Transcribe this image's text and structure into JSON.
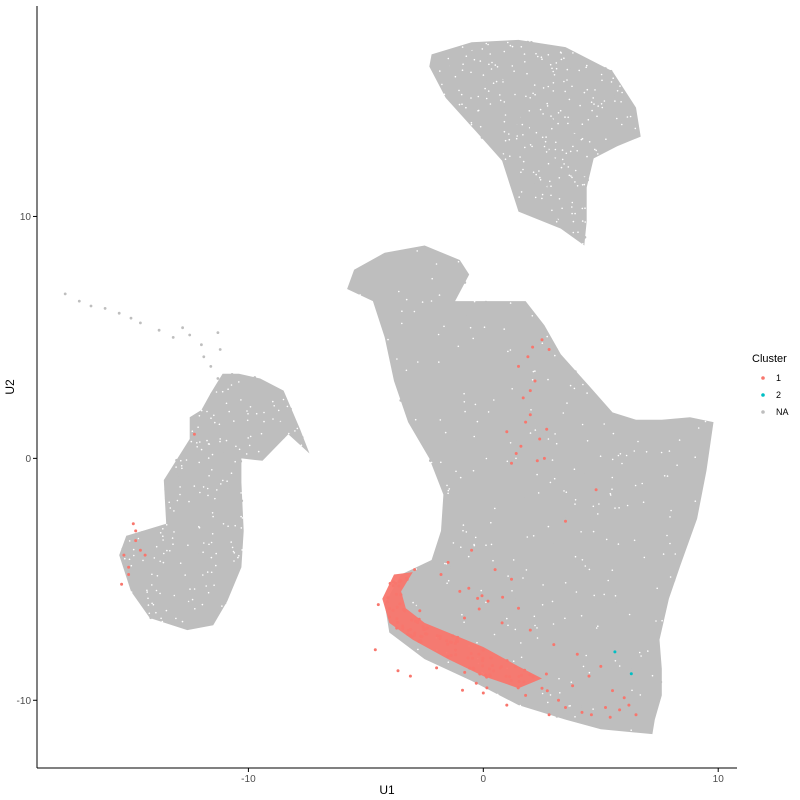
{
  "chart_data": {
    "type": "scatter",
    "xlabel": "U1",
    "ylabel": "U2",
    "xlim": [
      -19,
      10.8
    ],
    "ylim": [
      -12.8,
      18.7
    ],
    "x_ticks": [
      -10,
      0,
      10
    ],
    "y_ticks": [
      -10,
      0,
      10
    ],
    "grid": false,
    "legend": {
      "title": "Cluster",
      "position": "right",
      "entries": [
        {
          "label": "1",
          "color": "#F8766D"
        },
        {
          "label": "2",
          "color": "#00BFC4"
        },
        {
          "label": "NA",
          "color": "#BEBEBE"
        }
      ]
    },
    "regions_NA": [
      {
        "name": "top-island",
        "polygon": [
          [
            -2.2,
            16.7
          ],
          [
            -0.5,
            17.2
          ],
          [
            1.5,
            17.3
          ],
          [
            3.5,
            17.0
          ],
          [
            5.5,
            16.0
          ],
          [
            6.5,
            14.5
          ],
          [
            6.7,
            13.3
          ],
          [
            5.7,
            12.9
          ],
          [
            4.7,
            12.4
          ],
          [
            4.4,
            11.2
          ],
          [
            4.4,
            9.8
          ],
          [
            4.3,
            8.8
          ],
          [
            3.3,
            9.5
          ],
          [
            1.5,
            10.2
          ],
          [
            0.8,
            12.3
          ],
          [
            -0.3,
            13.5
          ],
          [
            -1.6,
            14.9
          ],
          [
            -2.3,
            16.2
          ]
        ]
      },
      {
        "name": "main-body",
        "polygon": [
          [
            -5.5,
            7.8
          ],
          [
            -4.2,
            8.5
          ],
          [
            -2.5,
            8.8
          ],
          [
            -1.0,
            8.2
          ],
          [
            -0.6,
            7.6
          ],
          [
            -1.2,
            6.5
          ],
          [
            0.2,
            6.5
          ],
          [
            1.8,
            6.5
          ],
          [
            2.6,
            5.5
          ],
          [
            3.3,
            4.3
          ],
          [
            4.5,
            3.0
          ],
          [
            5.5,
            1.9
          ],
          [
            6.5,
            1.6
          ],
          [
            7.6,
            1.6
          ],
          [
            8.8,
            1.7
          ],
          [
            9.8,
            1.5
          ],
          [
            9.5,
            -0.5
          ],
          [
            9.1,
            -2.5
          ],
          [
            8.4,
            -4.4
          ],
          [
            7.9,
            -5.8
          ],
          [
            7.5,
            -7.5
          ],
          [
            7.6,
            -8.7
          ],
          [
            7.6,
            -9.8
          ],
          [
            7.3,
            -10.8
          ],
          [
            7.2,
            -11.4
          ],
          [
            5.0,
            -11.2
          ],
          [
            3.5,
            -10.8
          ],
          [
            1.5,
            -10.2
          ],
          [
            -0.5,
            -9.2
          ],
          [
            -2.5,
            -8.3
          ],
          [
            -4.0,
            -7.2
          ],
          [
            -4.2,
            -6.0
          ],
          [
            -3.5,
            -4.8
          ],
          [
            -2.2,
            -4.2
          ],
          [
            -1.8,
            -3.0
          ],
          [
            -1.7,
            -1.5
          ],
          [
            -2.3,
            0.0
          ],
          [
            -3.2,
            1.5
          ],
          [
            -3.8,
            3.2
          ],
          [
            -4.2,
            5.0
          ],
          [
            -4.7,
            6.5
          ],
          [
            -5.8,
            7.0
          ]
        ]
      },
      {
        "name": "left-island",
        "polygon": [
          [
            -13.5,
            -2.7
          ],
          [
            -13.6,
            -0.9
          ],
          [
            -12.5,
            0.8
          ],
          [
            -12.5,
            1.7
          ],
          [
            -12.0,
            2.0
          ],
          [
            -11.6,
            2.7
          ],
          [
            -11.1,
            3.5
          ],
          [
            -10.4,
            3.5
          ],
          [
            -9.5,
            3.3
          ],
          [
            -8.5,
            2.8
          ],
          [
            -7.8,
            1.2
          ],
          [
            -7.4,
            0.2
          ],
          [
            -8.3,
            1.0
          ],
          [
            -9.4,
            -0.1
          ],
          [
            -10.3,
            0.0
          ],
          [
            -10.3,
            -1.0
          ],
          [
            -10.2,
            -3.0
          ],
          [
            -10.3,
            -4.5
          ],
          [
            -10.9,
            -5.9
          ],
          [
            -11.5,
            -6.9
          ],
          [
            -12.6,
            -7.1
          ],
          [
            -14.2,
            -6.6
          ],
          [
            -15.0,
            -5.5
          ],
          [
            -15.5,
            -4.0
          ],
          [
            -15.2,
            -3.2
          ]
        ]
      }
    ],
    "strands_NA": [
      {
        "name": "upper-left-strand",
        "points": [
          [
            -17.8,
            6.8
          ],
          [
            -17.2,
            6.5
          ],
          [
            -16.7,
            6.3
          ],
          [
            -16.1,
            6.2
          ],
          [
            -15.5,
            6.0
          ],
          [
            -15.0,
            5.8
          ],
          [
            -14.6,
            5.6
          ],
          [
            -13.8,
            5.3
          ],
          [
            -13.2,
            5.0
          ]
        ]
      },
      {
        "name": "mid-strand",
        "points": [
          [
            -12.8,
            5.4
          ],
          [
            -12.5,
            5.1
          ],
          [
            -12.0,
            4.7
          ],
          [
            -11.9,
            4.2
          ],
          [
            -11.6,
            3.8
          ],
          [
            -11.3,
            3.3
          ],
          [
            -11.2,
            4.5
          ],
          [
            -11.3,
            5.2
          ]
        ]
      }
    ],
    "series": [
      {
        "name": "1",
        "color": "#F8766D",
        "dense_band": {
          "polygon": [
            [
              -4.3,
              -5.8
            ],
            [
              -3.8,
              -4.8
            ],
            [
              -3.0,
              -4.7
            ],
            [
              -3.5,
              -5.5
            ],
            [
              -3.3,
              -6.2
            ],
            [
              -2.5,
              -6.8
            ],
            [
              -1.5,
              -7.2
            ],
            [
              0.0,
              -7.8
            ],
            [
              1.5,
              -8.6
            ],
            [
              2.5,
              -9.1
            ],
            [
              1.5,
              -9.5
            ],
            [
              0.0,
              -9.0
            ],
            [
              -1.5,
              -8.3
            ],
            [
              -3.0,
              -7.5
            ],
            [
              -4.0,
              -6.8
            ]
          ]
        },
        "x": [
          -12.3,
          -14.9,
          -14.8,
          -14.6,
          -15.3,
          -15.1,
          -14.8,
          -15.4,
          -14.4,
          -15.1,
          1.5,
          1.9,
          2.1,
          2.5,
          2.8,
          1.7,
          1.8,
          2.0,
          2.2,
          1.6,
          2.4,
          1.4,
          2.3,
          2.6,
          1.2,
          1.0,
          2.0,
          2.7,
          4.8,
          3.5,
          -1.5,
          -0.5,
          0.5,
          1.2,
          -1.0,
          0.2,
          1.5,
          -0.8,
          0.8,
          2.0,
          -1.8,
          3.0,
          4.0,
          5.0,
          4.5,
          3.8,
          5.5,
          6.0,
          5.2,
          4.2,
          3.5,
          6.2,
          6.5,
          2.8,
          3.2,
          1.0,
          0.0,
          -0.3,
          1.8,
          2.5,
          4.6,
          5.4,
          5.8
        ],
        "y": [
          1.0,
          -2.7,
          -3.0,
          -3.8,
          -4.0,
          -4.5,
          -3.4,
          -5.2,
          -4.0,
          -4.8,
          3.8,
          4.2,
          4.6,
          4.9,
          4.5,
          2.5,
          1.5,
          2.8,
          3.2,
          0.5,
          0.8,
          0.2,
          -0.1,
          0.0,
          -0.2,
          1.1,
          1.8,
          1.2,
          -1.3,
          -2.6,
          -4.3,
          -3.8,
          -4.6,
          -5.0,
          -5.5,
          -5.9,
          -6.2,
          -6.6,
          -6.8,
          -7.1,
          -4.8,
          -7.7,
          -8.1,
          -8.6,
          -9.0,
          -9.4,
          -9.6,
          -9.9,
          -10.3,
          -10.5,
          -10.3,
          -10.2,
          -10.6,
          -10.6,
          -10.0,
          -10.2,
          -9.7,
          -9.3,
          -9.8,
          -9.5,
          -10.6,
          -10.7,
          -10.4
        ]
      },
      {
        "name": "2",
        "color": "#00BFC4",
        "x": [
          5.6,
          6.3
        ],
        "y": [
          -8.0,
          -8.9
        ]
      }
    ]
  }
}
